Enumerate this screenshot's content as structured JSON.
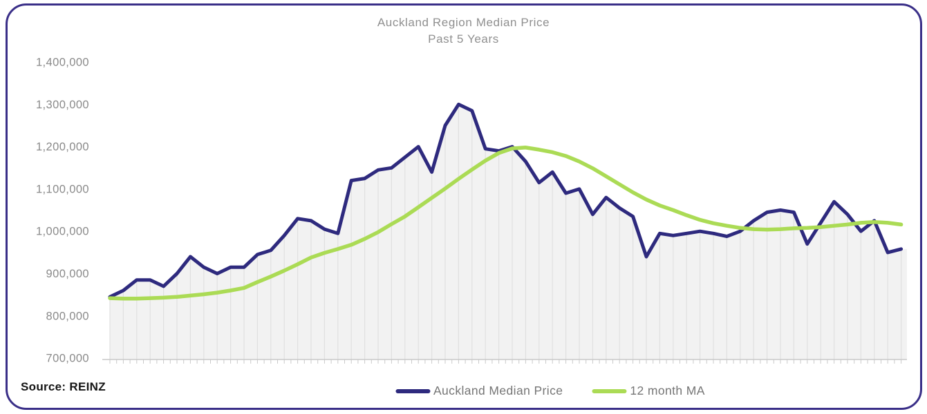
{
  "chart": {
    "title_line1": "Auckland Region Median Price",
    "title_line2": "Past 5 Years",
    "source_label": "Source: REINZ",
    "legend": [
      {
        "label": "Auckland Median Price",
        "color": "#2e2a7e"
      },
      {
        "label": "12 month MA",
        "color": "#abdb55"
      }
    ]
  },
  "chart_data": {
    "type": "line",
    "title": "Auckland Region Median Price",
    "subtitle": "Past 5 Years",
    "x_description": "60 monthly observations over the past 5 years (no x-axis labels shown)",
    "ylim": [
      700000,
      1400000
    ],
    "y_ticks": [
      "1,400,000",
      "1,300,000",
      "1,200,000",
      "1,100,000",
      "1,000,000",
      "900,000",
      "800,000",
      "700,000"
    ],
    "grid": "vertical drop line from each monthly data point to the x-axis; shaded area under median price line",
    "legend_position": "bottom-center",
    "source": "Source: REINZ",
    "colors": {
      "median_price": "#2e2a7e",
      "moving_average": "#abdb55",
      "area_fill": "#f2f2f2",
      "drop_lines": "#e0e0e0",
      "axis": "#c9c9c9",
      "border": "#3a2f88",
      "title_text": "#8f8f8f",
      "axis_text": "#8a8a8a"
    },
    "series": [
      {
        "name": "Auckland Median Price",
        "color": "#2e2a7e",
        "values": [
          845000,
          860000,
          885000,
          885000,
          870000,
          900000,
          940000,
          915000,
          900000,
          915000,
          915000,
          945000,
          955000,
          990000,
          1030000,
          1025000,
          1005000,
          995000,
          1120000,
          1125000,
          1145000,
          1150000,
          1175000,
          1200000,
          1140000,
          1250000,
          1300000,
          1285000,
          1195000,
          1190000,
          1200000,
          1165000,
          1115000,
          1140000,
          1090000,
          1100000,
          1040000,
          1080000,
          1055000,
          1035000,
          940000,
          995000,
          990000,
          995000,
          1000000,
          995000,
          988000,
          1000000,
          1025000,
          1045000,
          1050000,
          1045000,
          970000,
          1020000,
          1070000,
          1040000,
          1000000,
          1025000,
          950000,
          958000
        ]
      },
      {
        "name": "12 month MA",
        "color": "#abdb55",
        "values": [
          842000,
          841000,
          841000,
          842000,
          843000,
          845000,
          848000,
          851000,
          855000,
          860000,
          866000,
          880000,
          893000,
          907000,
          922000,
          938000,
          949000,
          958000,
          968000,
          982000,
          998000,
          1017000,
          1035000,
          1057000,
          1079000,
          1101000,
          1124000,
          1146000,
          1167000,
          1185000,
          1196000,
          1198000,
          1193000,
          1187000,
          1178000,
          1165000,
          1149000,
          1130000,
          1111000,
          1092000,
          1075000,
          1061000,
          1050000,
          1038000,
          1027000,
          1019000,
          1013000,
          1008000,
          1005000,
          1004000,
          1005000,
          1007000,
          1008000,
          1010000,
          1013000,
          1016000,
          1020000,
          1022000,
          1020000,
          1016000
        ]
      }
    ]
  }
}
